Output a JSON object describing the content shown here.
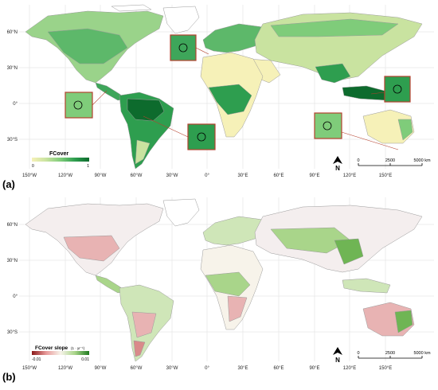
{
  "panels": [
    {
      "label": "(a)",
      "legend_title": "FCover",
      "legend_min": "0",
      "legend_max": "1",
      "colors": [
        "#f6f1b8",
        "#c9e3a0",
        "#7fcc7a",
        "#2e9e4f",
        "#0d6b2d"
      ]
    },
    {
      "label": "(b)",
      "legend_title": "FCover slope",
      "legend_unit": "(1 · yr⁻¹)",
      "legend_min": "-0.01",
      "legend_max": "0.01",
      "colors": [
        "#8b1a1a",
        "#e89a9a",
        "#f7f3ea",
        "#a9d58a",
        "#1f7a1f"
      ]
    }
  ],
  "lon_ticks": [
    "150°W",
    "120°W",
    "90°W",
    "60°W",
    "30°W",
    "0°",
    "30°E",
    "60°E",
    "90°E",
    "120°E",
    "150°E"
  ],
  "lat_ticks": [
    "60°N",
    "30°N",
    "0°",
    "30°S"
  ],
  "north_label": "N",
  "scalebar": {
    "labels": [
      "0",
      "2500",
      "5000 km"
    ]
  },
  "colors": {
    "ocean": "#ffffff",
    "land_empty": "#ffffff",
    "border": "#9a9a9a",
    "inset_frame": "#b5412e"
  }
}
